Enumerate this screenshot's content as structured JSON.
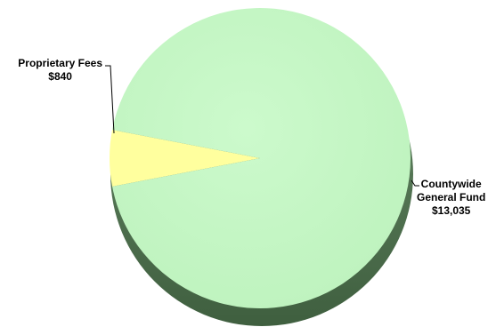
{
  "chart_data": {
    "type": "pie",
    "title": "",
    "slices": [
      {
        "label": "Proprietary Fees",
        "value": 840,
        "value_label": "$840",
        "color": "#ffff9e"
      },
      {
        "label": "Countywide General Fund",
        "label_lines": [
          "Countywide",
          "General Fund"
        ],
        "value": 13035,
        "value_label": "$13,035",
        "color": "#c4f7c4"
      }
    ],
    "style": "3d-pie-with-shadow",
    "shadow_color": "#4e6e4e"
  }
}
